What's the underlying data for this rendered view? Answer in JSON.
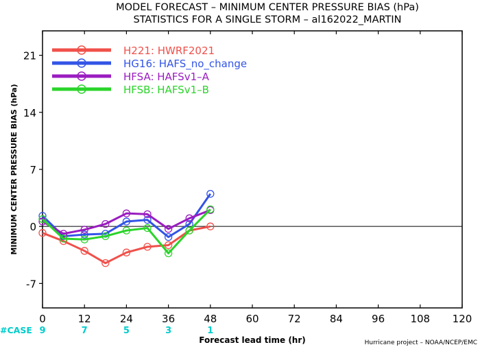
{
  "chart_data": {
    "type": "line",
    "title": "MODEL FORECAST – MINIMUM CENTER PRESSURE BIAS (hPa)",
    "subtitle": "STATISTICS FOR A SINGLE STORM – al162022_MARTIN",
    "xlabel": "Forecast lead time (hr)",
    "ylabel": "MINIMUM CENTER PRESSURE BIAS (hPa)",
    "xlim": [
      0,
      120
    ],
    "ylim": [
      -10,
      24
    ],
    "x_ticks": [
      0,
      12,
      24,
      36,
      48,
      60,
      72,
      84,
      96,
      108,
      120
    ],
    "y_ticks": [
      -7,
      0,
      7,
      14,
      21
    ],
    "x_tick_labels": [
      "0",
      "12",
      "24",
      "36",
      "48",
      "60",
      "72",
      "84",
      "96",
      "108",
      "120"
    ],
    "y_tick_labels": [
      "-7",
      "0",
      "7",
      "14",
      "21"
    ],
    "reference_line": 0,
    "cases": {
      "label": "#CASE",
      "x": [
        0,
        12,
        24,
        36,
        48
      ],
      "values": [
        "9",
        "7",
        "5",
        "3",
        "1"
      ],
      "color": "#00cccc"
    },
    "credit": "Hurricane project – NOAA/NCEP/EMC",
    "legend_placement": "top-left",
    "x": [
      0,
      6,
      12,
      18,
      24,
      30,
      36,
      42,
      48
    ],
    "series": [
      {
        "name": "H221: HWRF2021",
        "color": "#f0504a",
        "values": [
          -0.8,
          -1.8,
          -3.0,
          -4.5,
          -3.2,
          -2.5,
          -2.3,
          -0.5,
          0.0
        ]
      },
      {
        "name": "HG16: HAFS_no_change",
        "color": "#3254e6",
        "values": [
          1.3,
          -1.2,
          -1.0,
          -0.9,
          0.6,
          0.8,
          -1.3,
          0.3,
          4.0
        ]
      },
      {
        "name": "HFSA: HAFSv1–A",
        "color": "#9a1cc0",
        "values": [
          0.6,
          -0.9,
          -0.4,
          0.3,
          1.6,
          1.5,
          -0.3,
          1.0,
          2.0
        ]
      },
      {
        "name": "HFSB: HAFSv1–B",
        "color": "#2ad42a",
        "values": [
          0.9,
          -1.5,
          -1.6,
          -1.2,
          -0.5,
          -0.2,
          -3.3,
          -0.5,
          2.1
        ]
      }
    ]
  }
}
